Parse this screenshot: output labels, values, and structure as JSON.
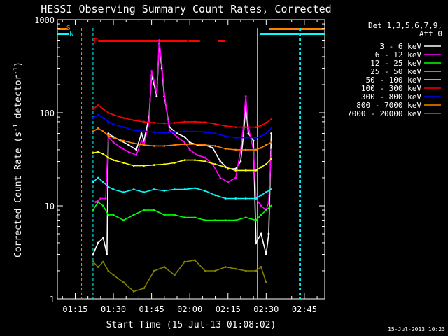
{
  "chart_data": {
    "type": "line",
    "title": "HESSI Observing Summary Count Rates, Corrected",
    "xlabel": "Start Time (15-Jul-13 01:08:02)",
    "ylabel_main": "Corrected Count Rate (s",
    "ylabel_sup1": "-1",
    "ylabel_mid": " detector",
    "ylabel_sup2": "-1",
    "ylabel_end": ")",
    "yscale": "log",
    "xlim_minutes": [
      68,
      173
    ],
    "ylim": [
      1,
      1000
    ],
    "x_ticks": [
      {
        "label": "01:15",
        "min": 75
      },
      {
        "label": "01:30",
        "min": 90
      },
      {
        "label": "01:45",
        "min": 105
      },
      {
        "label": "02:00",
        "min": 120
      },
      {
        "label": "02:15",
        "min": 135
      },
      {
        "label": "02:30",
        "min": 150
      },
      {
        "label": "02:45",
        "min": 165
      }
    ],
    "y_ticks": [
      {
        "label": "1",
        "value": 1
      },
      {
        "label": "10",
        "value": 10
      },
      {
        "label": "100",
        "value": 100
      },
      {
        "label": "1000",
        "value": 1000
      }
    ],
    "legend_title_1": "Det 1,3,5,6,7,9,",
    "legend_title_2": "Att 0",
    "series": [
      {
        "name": "3 - 6 keV",
        "color": "#ffffff",
        "line": "#000000",
        "points": [
          [
            82,
            3
          ],
          [
            84,
            4
          ],
          [
            86,
            4.5
          ],
          [
            87.5,
            3
          ],
          [
            88,
            60
          ],
          [
            90,
            55
          ],
          [
            93,
            50
          ],
          [
            96,
            45
          ],
          [
            99,
            40
          ],
          [
            101,
            60
          ],
          [
            102,
            50
          ],
          [
            104,
            90
          ],
          [
            105,
            250
          ],
          [
            106,
            200
          ],
          [
            107,
            150
          ],
          [
            108,
            550
          ],
          [
            109,
            300
          ],
          [
            110,
            150
          ],
          [
            112,
            70
          ],
          [
            115,
            60
          ],
          [
            118,
            55
          ],
          [
            120,
            48
          ],
          [
            123,
            45
          ],
          [
            126,
            45
          ],
          [
            129,
            42
          ],
          [
            132,
            30
          ],
          [
            135,
            25
          ],
          [
            138,
            25
          ],
          [
            140,
            30
          ],
          [
            141,
            55
          ],
          [
            142,
            120
          ],
          [
            143,
            60
          ],
          [
            145,
            50
          ],
          [
            146,
            4
          ],
          [
            148,
            5
          ],
          [
            150,
            3
          ],
          [
            151,
            5
          ],
          [
            152,
            60
          ]
        ]
      },
      {
        "name": "6 - 12 keV",
        "color": "#ff00ff",
        "points": [
          [
            83,
            11
          ],
          [
            85,
            12
          ],
          [
            87,
            12
          ],
          [
            88,
            55
          ],
          [
            90,
            48
          ],
          [
            93,
            42
          ],
          [
            96,
            38
          ],
          [
            99,
            35
          ],
          [
            101,
            50
          ],
          [
            102,
            45
          ],
          [
            104,
            80
          ],
          [
            105,
            280
          ],
          [
            106,
            220
          ],
          [
            107,
            160
          ],
          [
            108,
            600
          ],
          [
            109,
            330
          ],
          [
            110,
            160
          ],
          [
            112,
            65
          ],
          [
            115,
            55
          ],
          [
            118,
            48
          ],
          [
            120,
            40
          ],
          [
            123,
            35
          ],
          [
            126,
            33
          ],
          [
            129,
            28
          ],
          [
            132,
            20
          ],
          [
            135,
            18
          ],
          [
            138,
            20
          ],
          [
            140,
            40
          ],
          [
            141,
            70
          ],
          [
            142,
            150
          ],
          [
            143,
            70
          ],
          [
            145,
            40
          ],
          [
            146,
            12
          ],
          [
            148,
            10
          ],
          [
            150,
            9
          ],
          [
            151,
            11
          ],
          [
            152,
            40
          ]
        ]
      },
      {
        "name": "12 - 25 keV",
        "color": "#00ff00",
        "points": [
          [
            82,
            9
          ],
          [
            84,
            11
          ],
          [
            86,
            10
          ],
          [
            88,
            8
          ],
          [
            90,
            8
          ],
          [
            94,
            7
          ],
          [
            98,
            8
          ],
          [
            102,
            9
          ],
          [
            106,
            9
          ],
          [
            110,
            8
          ],
          [
            114,
            8
          ],
          [
            118,
            7.5
          ],
          [
            122,
            7.5
          ],
          [
            126,
            7
          ],
          [
            130,
            7
          ],
          [
            134,
            7
          ],
          [
            138,
            7
          ],
          [
            142,
            7.5
          ],
          [
            146,
            7
          ],
          [
            148,
            8
          ],
          [
            150,
            9
          ],
          [
            152,
            10
          ]
        ]
      },
      {
        "name": "25 - 50 keV",
        "color": "#00ffff",
        "points": [
          [
            82,
            18
          ],
          [
            84,
            20
          ],
          [
            86,
            18
          ],
          [
            88,
            16
          ],
          [
            90,
            15
          ],
          [
            94,
            14
          ],
          [
            98,
            15
          ],
          [
            102,
            14
          ],
          [
            106,
            15
          ],
          [
            110,
            14.5
          ],
          [
            114,
            15
          ],
          [
            118,
            15
          ],
          [
            122,
            15.5
          ],
          [
            126,
            14.5
          ],
          [
            130,
            13
          ],
          [
            134,
            12
          ],
          [
            138,
            12
          ],
          [
            142,
            12
          ],
          [
            146,
            12
          ],
          [
            148,
            13
          ],
          [
            150,
            14
          ],
          [
            152,
            15
          ]
        ]
      },
      {
        "name": "50 - 100 keV",
        "color": "#ffff00",
        "points": [
          [
            82,
            37
          ],
          [
            84,
            38
          ],
          [
            86,
            36
          ],
          [
            88,
            33
          ],
          [
            90,
            31
          ],
          [
            94,
            29
          ],
          [
            98,
            27
          ],
          [
            102,
            27
          ],
          [
            106,
            27.5
          ],
          [
            110,
            28
          ],
          [
            114,
            29
          ],
          [
            118,
            31
          ],
          [
            122,
            31
          ],
          [
            126,
            30
          ],
          [
            130,
            28
          ],
          [
            134,
            26
          ],
          [
            138,
            24
          ],
          [
            142,
            24
          ],
          [
            146,
            24
          ],
          [
            148,
            26
          ],
          [
            150,
            28
          ],
          [
            152,
            32
          ]
        ]
      },
      {
        "name": "100 - 300 keV",
        "color": "#ff0000",
        "points": [
          [
            82,
            110
          ],
          [
            84,
            120
          ],
          [
            86,
            110
          ],
          [
            88,
            100
          ],
          [
            90,
            95
          ],
          [
            94,
            88
          ],
          [
            98,
            83
          ],
          [
            102,
            80
          ],
          [
            106,
            78
          ],
          [
            110,
            77
          ],
          [
            114,
            78
          ],
          [
            118,
            80
          ],
          [
            122,
            80
          ],
          [
            126,
            79
          ],
          [
            130,
            76
          ],
          [
            134,
            72
          ],
          [
            138,
            70
          ],
          [
            142,
            70
          ],
          [
            146,
            70
          ],
          [
            148,
            73
          ],
          [
            150,
            78
          ],
          [
            152,
            85
          ]
        ]
      },
      {
        "name": "300 - 800 keV",
        "color": "#0000ff",
        "points": [
          [
            82,
            88
          ],
          [
            84,
            95
          ],
          [
            86,
            88
          ],
          [
            88,
            80
          ],
          [
            90,
            75
          ],
          [
            94,
            70
          ],
          [
            98,
            65
          ],
          [
            102,
            63
          ],
          [
            106,
            62
          ],
          [
            110,
            61
          ],
          [
            114,
            62
          ],
          [
            118,
            63
          ],
          [
            122,
            63
          ],
          [
            126,
            62
          ],
          [
            130,
            60
          ],
          [
            134,
            56
          ],
          [
            138,
            54
          ],
          [
            142,
            54
          ],
          [
            146,
            54
          ],
          [
            148,
            56
          ],
          [
            150,
            60
          ],
          [
            152,
            68
          ]
        ]
      },
      {
        "name": "800 - 7000 keV",
        "color": "#ff8000",
        "points": [
          [
            82,
            63
          ],
          [
            84,
            68
          ],
          [
            86,
            63
          ],
          [
            88,
            57
          ],
          [
            90,
            54
          ],
          [
            94,
            50
          ],
          [
            98,
            47
          ],
          [
            102,
            45
          ],
          [
            106,
            44
          ],
          [
            110,
            44
          ],
          [
            114,
            45
          ],
          [
            118,
            46
          ],
          [
            122,
            46
          ],
          [
            126,
            45
          ],
          [
            130,
            44
          ],
          [
            134,
            41
          ],
          [
            138,
            40
          ],
          [
            142,
            40
          ],
          [
            146,
            40
          ],
          [
            148,
            42
          ],
          [
            150,
            45
          ],
          [
            152,
            48
          ]
        ]
      },
      {
        "name": "7000 - 20000 keV",
        "color": "#808000",
        "points": [
          [
            82,
            2.5
          ],
          [
            84,
            2.2
          ],
          [
            86,
            2.5
          ],
          [
            88,
            2
          ],
          [
            90,
            1.8
          ],
          [
            94,
            1.5
          ],
          [
            98,
            1.2
          ],
          [
            102,
            1.3
          ],
          [
            106,
            2
          ],
          [
            110,
            2.2
          ],
          [
            114,
            1.8
          ],
          [
            118,
            2.5
          ],
          [
            122,
            2.6
          ],
          [
            126,
            2
          ],
          [
            130,
            2
          ],
          [
            134,
            2.2
          ],
          [
            138,
            2.1
          ],
          [
            142,
            2
          ],
          [
            146,
            2
          ],
          [
            148,
            2.2
          ],
          [
            150,
            1.5
          ]
        ]
      }
    ],
    "flag_labels": {
      "s": "S",
      "n": "N",
      "f": "F"
    },
    "flag_colors": {
      "s": "#ff8000",
      "n": "#00ffff",
      "f": "#ff0000"
    },
    "footer_stamp": "15-Jul-2013 10:23"
  }
}
